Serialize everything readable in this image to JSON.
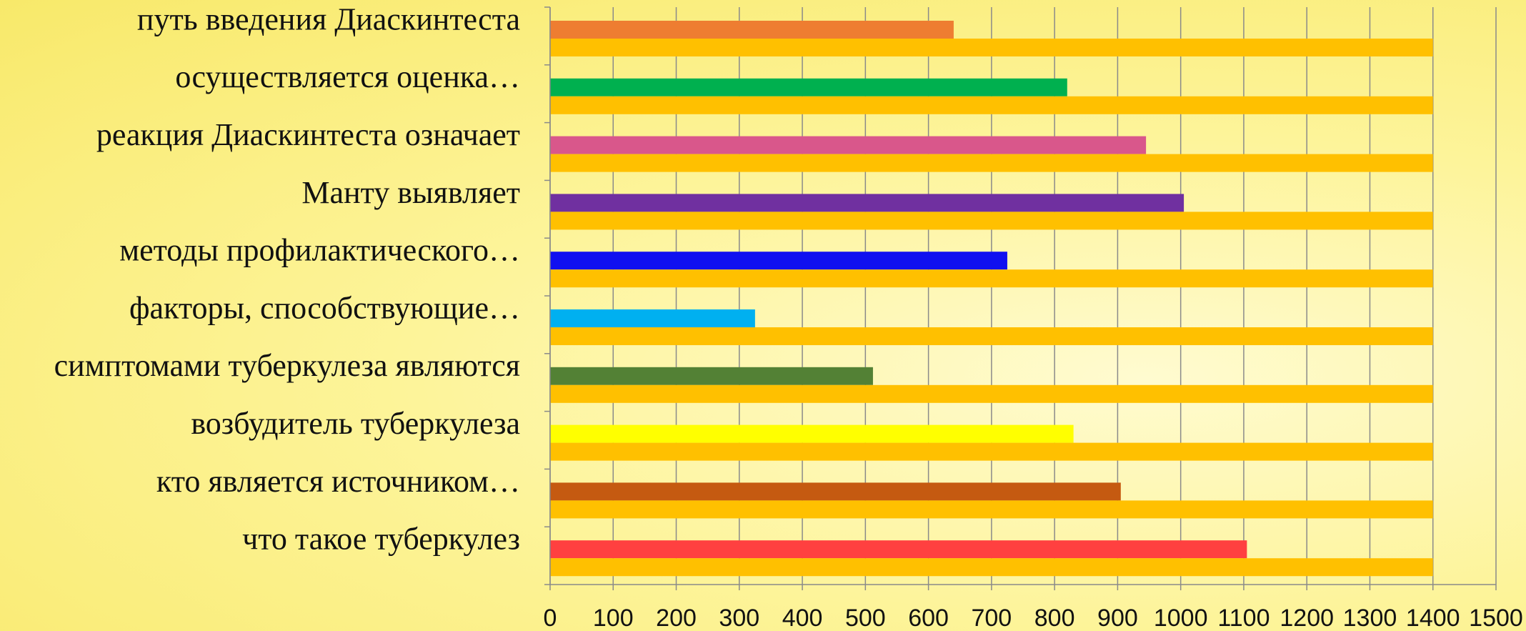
{
  "chart_data": {
    "type": "bar",
    "orientation": "horizontal",
    "categories": [
      "путь введения Диаскинтеста",
      "осуществляется оценка…",
      "реакция Диаскинтеста означает",
      "Манту выявляет",
      "методы профилактического…",
      "факторы, способствующие…",
      "симптомами туберкулеза являются",
      "возбудитель туберкулеза",
      "кто является источником…",
      "что такое туберкулез"
    ],
    "series": [
      {
        "values": [
          640,
          820,
          945,
          1005,
          725,
          325,
          512,
          830,
          905,
          1105
        ],
        "colors": [
          "#ee7d31",
          "#00b04f",
          "#d9578b",
          "#7030a0",
          "#1010f0",
          "#00b0f0",
          "#538135",
          "#ffff00",
          "#c55a11",
          "#ff4040"
        ]
      },
      {
        "values": [
          1400,
          1400,
          1400,
          1400,
          1400,
          1400,
          1400,
          1400,
          1400,
          1400
        ],
        "color": "#ffc000"
      }
    ],
    "xlim": [
      0,
      1500
    ],
    "xticks": [
      "0",
      "100",
      "200",
      "300",
      "400",
      "500",
      "600",
      "700",
      "800",
      "900",
      "1000",
      "1100",
      "1200",
      "1300",
      "1400",
      "1500"
    ],
    "grid": true,
    "legend": "none",
    "title": "",
    "xlabel": "",
    "ylabel": ""
  }
}
